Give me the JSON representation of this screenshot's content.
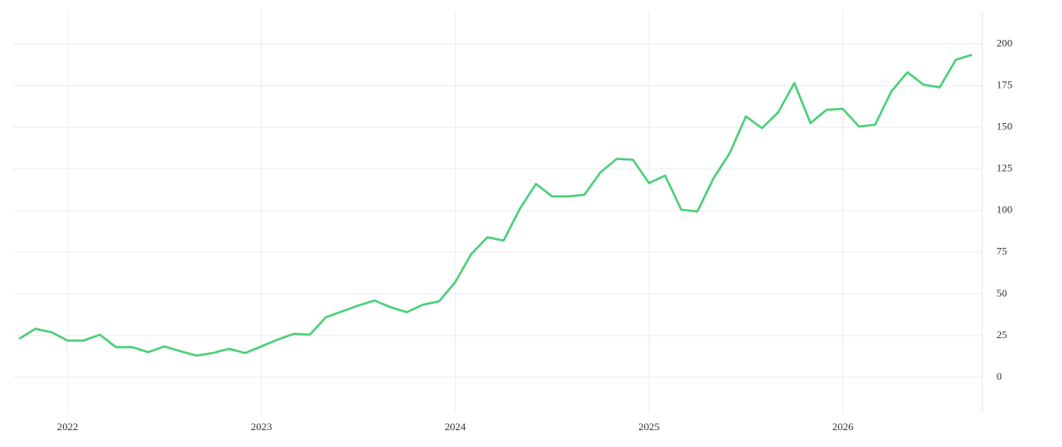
{
  "chart_data": {
    "type": "line",
    "x": [
      2021.75,
      2021.8333,
      2021.9167,
      2022,
      2022.0833,
      2022.1667,
      2022.25,
      2022.3333,
      2022.4167,
      2022.5,
      2022.5833,
      2022.6667,
      2022.75,
      2022.8333,
      2022.9167,
      2023,
      2023.0833,
      2023.1667,
      2023.25,
      2023.3333,
      2023.4167,
      2023.5,
      2023.5833,
      2023.6667,
      2023.75,
      2023.8333,
      2023.9167,
      2024,
      2024.0833,
      2024.1667,
      2024.25,
      2024.3333,
      2024.4167,
      2024.5,
      2024.5833,
      2024.6667,
      2024.75,
      2024.8333,
      2024.9167,
      2025,
      2025.0833,
      2025.1667,
      2025.25,
      2025.3333,
      2025.4167,
      2025.5,
      2025.5833,
      2025.6667,
      2025.75,
      2025.8333,
      2025.9167,
      2026,
      2026.0833,
      2026.1667,
      2026.25,
      2026.3333,
      2026.4167,
      2026.5,
      2026.5833,
      2026.6667
    ],
    "values": [
      23,
      29,
      27,
      22,
      22,
      25.5,
      18,
      18,
      15,
      18.5,
      15.5,
      13,
      14.5,
      17,
      14.5,
      18.5,
      22.5,
      26,
      25.5,
      36,
      39.5,
      43,
      46,
      42,
      39,
      43.5,
      45.5,
      57,
      74,
      84,
      82,
      101,
      116,
      108.5,
      108.5,
      109.5,
      123,
      131,
      130.5,
      116.5,
      121,
      100.5,
      99.5,
      119.5,
      134.5,
      156.5,
      149.5,
      159,
      176.5,
      152.5,
      160.5,
      161,
      150.5,
      151.5,
      171.5,
      183,
      175.5,
      174,
      190.5,
      193.5
    ],
    "color": "#4ccf7a",
    "xlim": [
      2021.72,
      2026.72
    ],
    "xticks": [
      2022,
      2023,
      2024,
      2025,
      2026
    ],
    "ylim": [
      -18,
      220
    ],
    "yticks": [
      0,
      25,
      50,
      75,
      100,
      125,
      150,
      175,
      200
    ],
    "grid": true,
    "y_axis_side": "right"
  }
}
